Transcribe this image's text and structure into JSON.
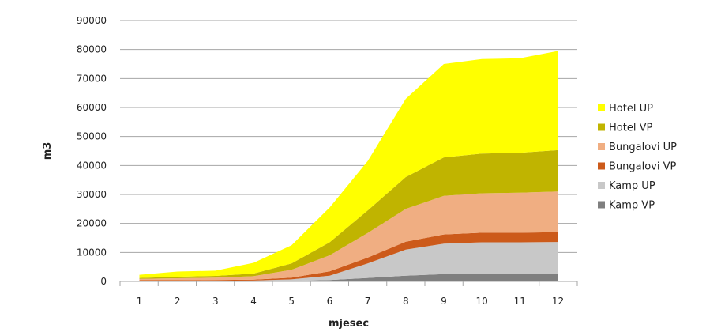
{
  "chart_data": {
    "type": "area",
    "stacked": true,
    "title": "",
    "xlabel": "mjesec",
    "ylabel": "m3",
    "x": [
      1,
      2,
      3,
      4,
      5,
      6,
      7,
      8,
      9,
      10,
      11,
      12
    ],
    "ylim": [
      0,
      90000
    ],
    "yticks": [
      0,
      10000,
      20000,
      30000,
      40000,
      50000,
      60000,
      70000,
      80000,
      90000
    ],
    "ytick_labels": [
      "0",
      "10000",
      "20000",
      "30000",
      "40000",
      "50000",
      "60000",
      "70000",
      "80000",
      "90000"
    ],
    "grid": "horizontal",
    "legend_position": "right",
    "series": [
      {
        "name": "Kamp VP",
        "color": "#7f7f7f",
        "values": [
          100,
          100,
          100,
          100,
          200,
          500,
          1200,
          2000,
          2500,
          2600,
          2600,
          2700
        ]
      },
      {
        "name": "Kamp UP",
        "color": "#c8c8c8",
        "values": [
          100,
          100,
          150,
          200,
          500,
          1500,
          5000,
          9000,
          10500,
          10900,
          10900,
          10900
        ]
      },
      {
        "name": "Bungalovi VP",
        "color": "#cc5a1a",
        "values": [
          200,
          200,
          250,
          300,
          600,
          1500,
          2000,
          2700,
          3200,
          3300,
          3300,
          3400
        ]
      },
      {
        "name": "Bungalovi UP",
        "color": "#f0ae82",
        "values": [
          500,
          700,
          800,
          1200,
          2700,
          5500,
          8500,
          11300,
          13300,
          13600,
          13800,
          14000
        ]
      },
      {
        "name": "Hotel VP",
        "color": "#c0b400",
        "values": [
          300,
          500,
          600,
          900,
          2200,
          4500,
          7800,
          11000,
          13300,
          13700,
          13800,
          14300
        ]
      },
      {
        "name": "Hotel UP",
        "color": "#ffff00",
        "values": [
          1100,
          1800,
          1800,
          3700,
          6300,
          12000,
          17000,
          27000,
          32200,
          32600,
          32600,
          34200
        ]
      }
    ]
  }
}
